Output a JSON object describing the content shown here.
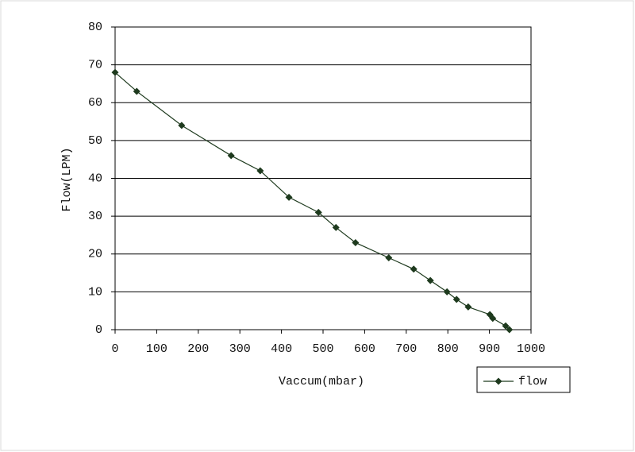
{
  "chart_data": {
    "type": "line",
    "x_label": "Vaccum(mbar)",
    "y_label": "Flow(LPM)",
    "x": [
      0,
      52,
      160,
      279,
      349,
      418,
      489,
      531,
      578,
      658,
      718,
      758,
      798,
      821,
      849,
      901,
      908,
      939,
      948
    ],
    "series": [
      {
        "name": "flow",
        "color": "#1e3a1e",
        "values": [
          68,
          63,
          54,
          46,
          42,
          35,
          31,
          27,
          23,
          19,
          16,
          13,
          10,
          8,
          6,
          4,
          3,
          1,
          0
        ]
      }
    ],
    "xlim": [
      0,
      1000
    ],
    "xticks": [
      0,
      100,
      200,
      300,
      400,
      500,
      600,
      700,
      800,
      900,
      1000
    ],
    "ylim": [
      0,
      80
    ],
    "yticks": [
      0,
      10,
      20,
      30,
      40,
      50,
      60,
      70,
      80
    ],
    "grid": true,
    "legend": "bottom-right"
  }
}
